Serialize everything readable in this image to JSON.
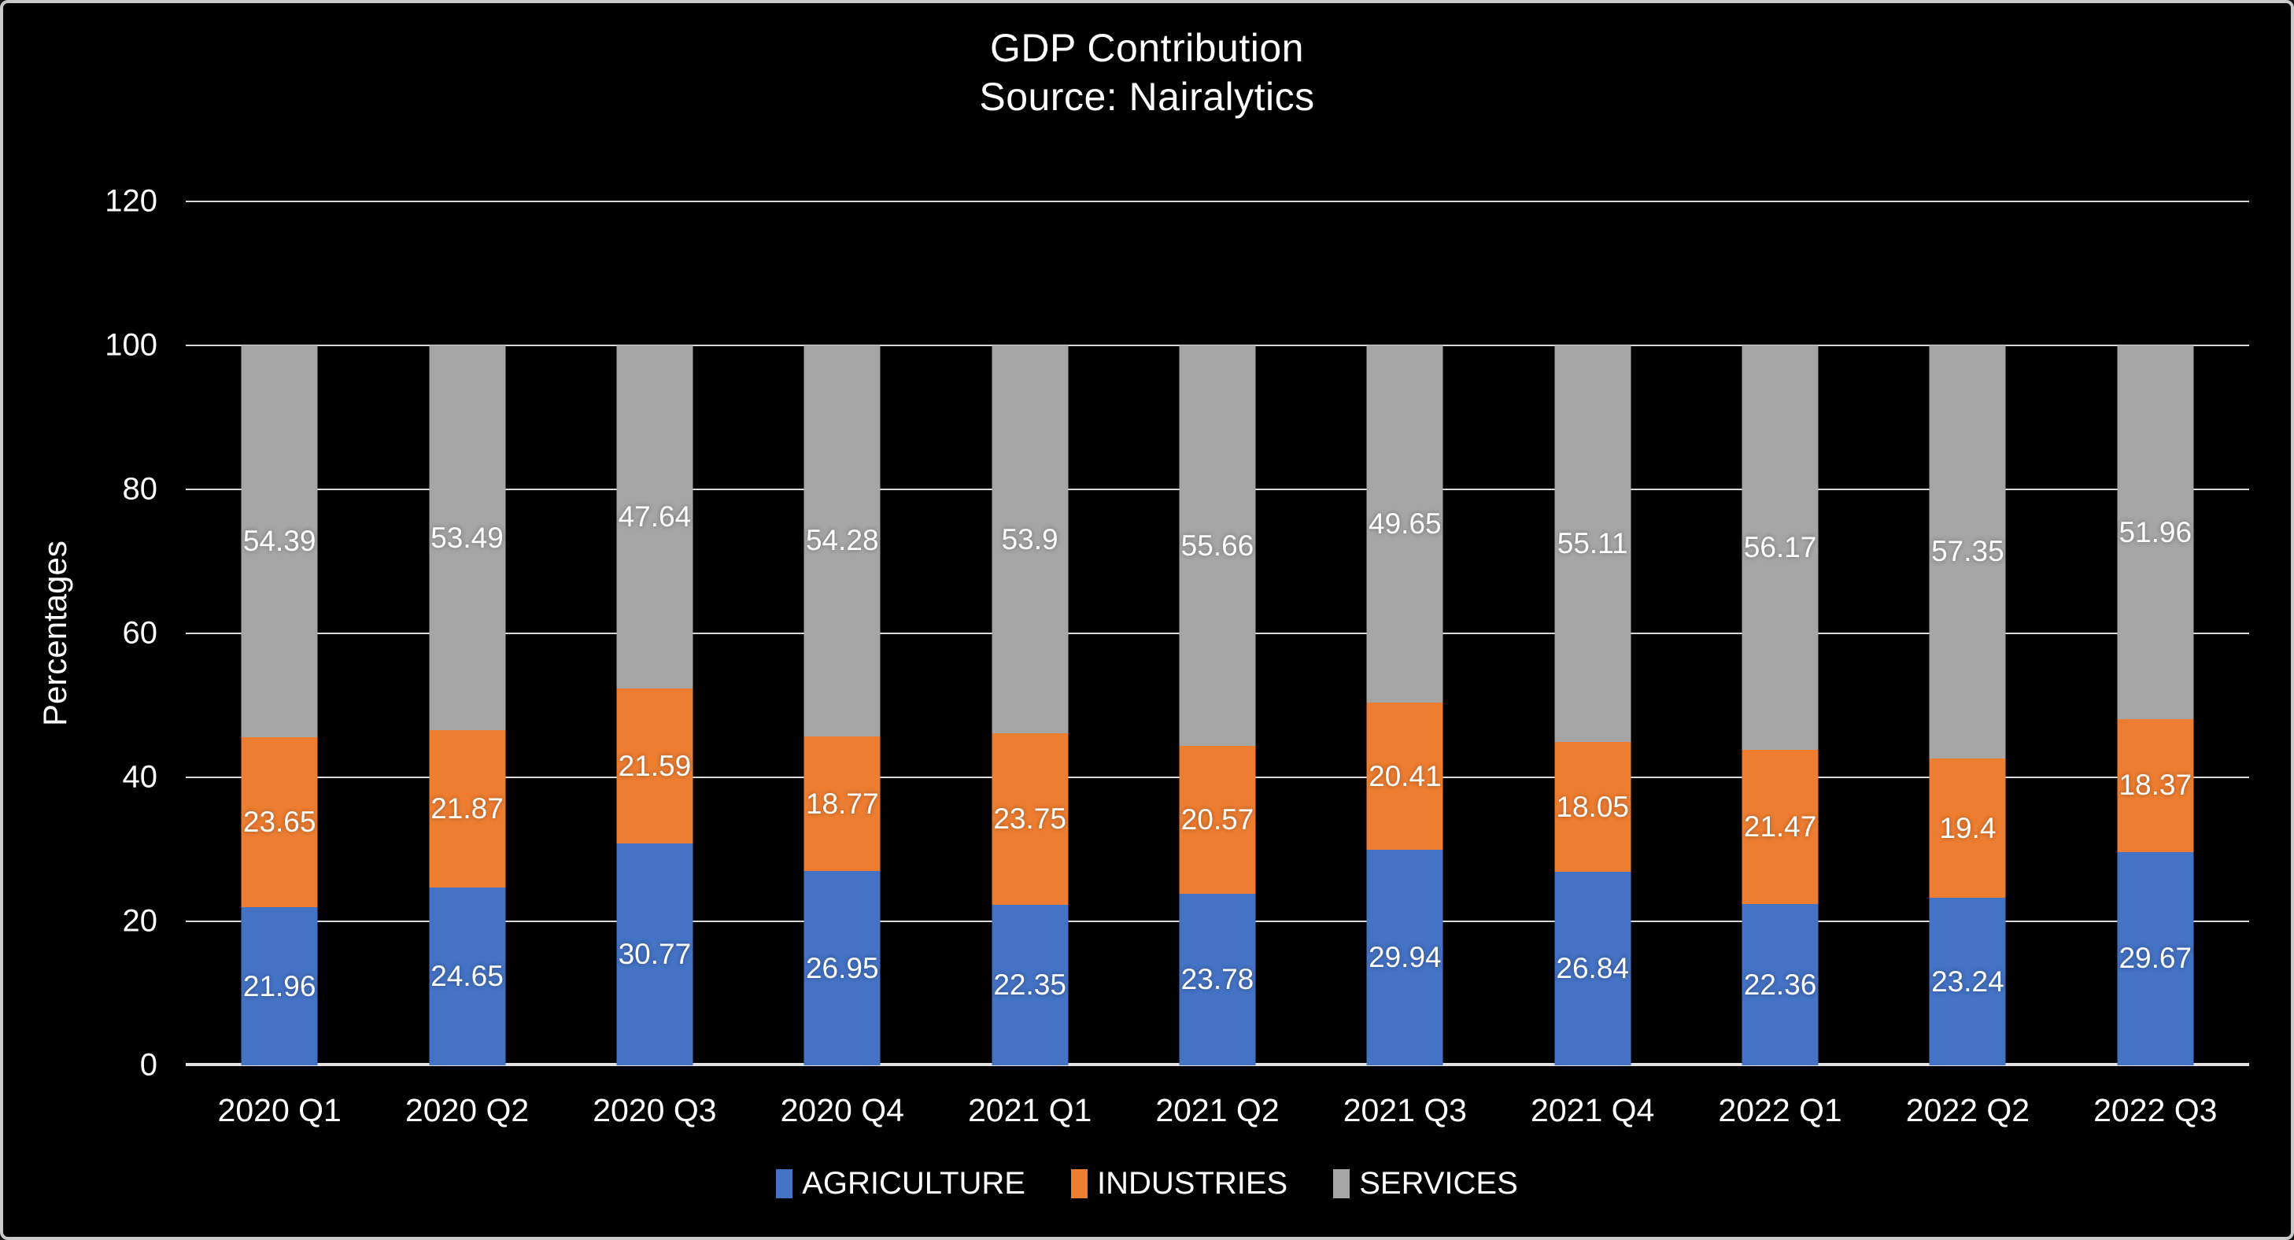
{
  "title": {
    "line1": "GDP Contribution",
    "line2": "Source: Nairalytics"
  },
  "colors": {
    "background": "#000000",
    "border": "#c9c9c9",
    "text": "#ffffff",
    "gridline": "#d9d9d9",
    "agriculture": "#4472C4",
    "industries": "#ED7D31",
    "services": "#A5A5A5"
  },
  "chart_data": {
    "type": "bar",
    "stacked": true,
    "title": "GDP Contribution",
    "subtitle": "Source: Nairalytics",
    "xlabel": "",
    "ylabel": "Percentages",
    "ylim": [
      0,
      120
    ],
    "ytick_step": 20,
    "yticks": [
      "0",
      "20",
      "40",
      "60",
      "80",
      "100",
      "120"
    ],
    "grid": true,
    "legend_position": "bottom",
    "categories": [
      "2020 Q1",
      "2020 Q2",
      "2020 Q3",
      "2020 Q4",
      "2021 Q1",
      "2021 Q2",
      "2021 Q3",
      "2021 Q4",
      "2022 Q1",
      "2022 Q2",
      "2022 Q3"
    ],
    "series": [
      {
        "name": "AGRICULTURE",
        "color": "#4472C4",
        "values": [
          21.96,
          24.65,
          30.77,
          26.95,
          22.35,
          23.78,
          29.94,
          26.84,
          22.36,
          23.24,
          29.67
        ]
      },
      {
        "name": "INDUSTRIES",
        "color": "#ED7D31",
        "values": [
          23.65,
          21.87,
          21.59,
          18.77,
          23.75,
          20.57,
          20.41,
          18.05,
          21.47,
          19.4,
          18.37
        ]
      },
      {
        "name": "SERVICES",
        "color": "#A5A5A5",
        "values": [
          54.39,
          53.49,
          47.64,
          54.28,
          53.9,
          55.66,
          49.65,
          55.11,
          56.17,
          57.35,
          51.96
        ]
      }
    ]
  }
}
